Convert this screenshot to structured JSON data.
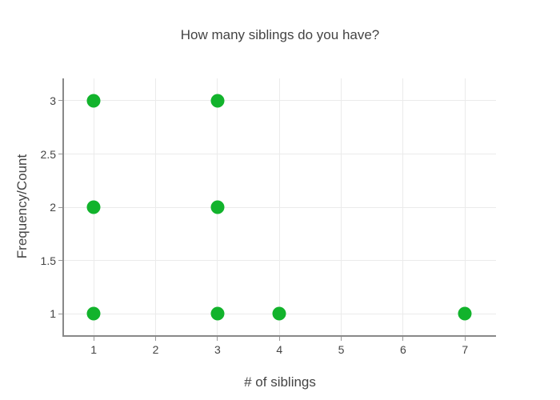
{
  "chart_data": {
    "type": "scatter",
    "title": "How many siblings do you have?",
    "xlabel": "# of siblings",
    "ylabel": "Frequency/Count",
    "points": [
      {
        "x": 1,
        "y": 1
      },
      {
        "x": 1,
        "y": 2
      },
      {
        "x": 1,
        "y": 3
      },
      {
        "x": 3,
        "y": 1
      },
      {
        "x": 3,
        "y": 2
      },
      {
        "x": 3,
        "y": 3
      },
      {
        "x": 4,
        "y": 1
      },
      {
        "x": 7,
        "y": 1
      }
    ],
    "xticks": [
      1,
      2,
      3,
      4,
      5,
      6,
      7
    ],
    "yticks": [
      1,
      1.5,
      2,
      2.5,
      3
    ],
    "xlim": [
      0.52,
      7.5
    ],
    "ylim": [
      0.8,
      3.21
    ],
    "grid": true,
    "legend": "none",
    "marker_color": "#12b32c",
    "marker_size": 17,
    "grid_color": "#ebebeb",
    "axis_line_color": "#888888",
    "tick_color": "#999999",
    "text_color": "#444444",
    "background_color": "#ffffff"
  }
}
